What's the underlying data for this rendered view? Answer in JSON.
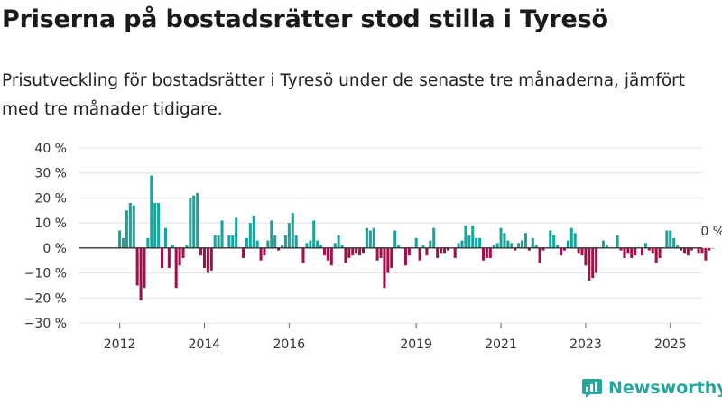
{
  "title": "Priserna på bostadsrätter stod stilla i Tyresö",
  "subtitle": "Prisutveckling för bostadsrätter i Tyresö under de senaste tre månaderna, jämfört med tre månader tidigare.",
  "brand": {
    "name": "Newsworthy",
    "color": "#26a69a"
  },
  "colors": {
    "positive": "#1aa39a",
    "negative": "#a0114a",
    "grid": "#e3e3e3",
    "zero": "#333333"
  },
  "chart_data": {
    "type": "bar",
    "title": "Priserna på bostadsrätter stod stilla i Tyresö",
    "xlabel": "",
    "ylabel": "",
    "ylim": [
      -30,
      40
    ],
    "xlim": [
      2011.05,
      2025.75
    ],
    "y_ticks": [
      -30,
      -20,
      -10,
      0,
      10,
      20,
      30,
      40
    ],
    "y_tick_labels": [
      "−30 %",
      "−20 %",
      "−10 %",
      "0 %",
      "10 %",
      "20 %",
      "30 %",
      "40 %"
    ],
    "x_ticks": [
      2012,
      2014,
      2016,
      2019,
      2021,
      2023,
      2025
    ],
    "x_tick_labels": [
      "2012",
      "2014",
      "2016",
      "2019",
      "2021",
      "2023",
      "2025"
    ],
    "start": 2012.0,
    "step_months": 1,
    "series": [
      {
        "name": "Prisutveckling",
        "values": [
          7,
          4,
          15,
          18,
          17,
          -15,
          -21,
          -16,
          4,
          29,
          18,
          18,
          -8,
          8,
          -8,
          1,
          -16,
          -7,
          -4,
          1,
          20,
          21,
          22,
          -3,
          -8,
          -10,
          -9,
          5,
          5,
          11,
          0,
          5,
          5,
          12,
          0,
          -4,
          4,
          10,
          13,
          3,
          -5,
          -3,
          3,
          11,
          5,
          -1,
          1,
          5,
          10,
          14,
          5,
          0,
          -6,
          2,
          3,
          11,
          3,
          1,
          -3,
          -5,
          -7,
          2,
          5,
          1,
          -6,
          -4,
          -3,
          -2,
          -3,
          -2,
          8,
          7,
          8,
          -5,
          -4,
          -16,
          -10,
          -8,
          7,
          1,
          0,
          -7,
          -3,
          0,
          4,
          -5,
          1,
          -3,
          3,
          8,
          -4,
          -2,
          -2,
          -1,
          0,
          -4,
          2,
          3,
          9,
          5,
          9,
          4,
          4,
          -5,
          -4,
          -4,
          1,
          2,
          8,
          6,
          3,
          2,
          -1,
          2,
          3,
          6,
          -1,
          4,
          1,
          -6,
          -1,
          0,
          7,
          5,
          1,
          -3,
          -1,
          3,
          8,
          6,
          -2,
          -3,
          -7,
          -13,
          -12,
          -10,
          0,
          3,
          1,
          0,
          0,
          5,
          -1,
          -4,
          -2,
          -4,
          -3,
          0,
          -3,
          2,
          -1,
          -2,
          -6,
          -4,
          0,
          7,
          7,
          4,
          1,
          -1,
          -2,
          -3,
          -1,
          0,
          -2,
          -2,
          -5,
          -1,
          0
        ]
      }
    ],
    "annotations": [
      {
        "text": "0 %",
        "at": "last-bar",
        "value": 0
      }
    ]
  }
}
